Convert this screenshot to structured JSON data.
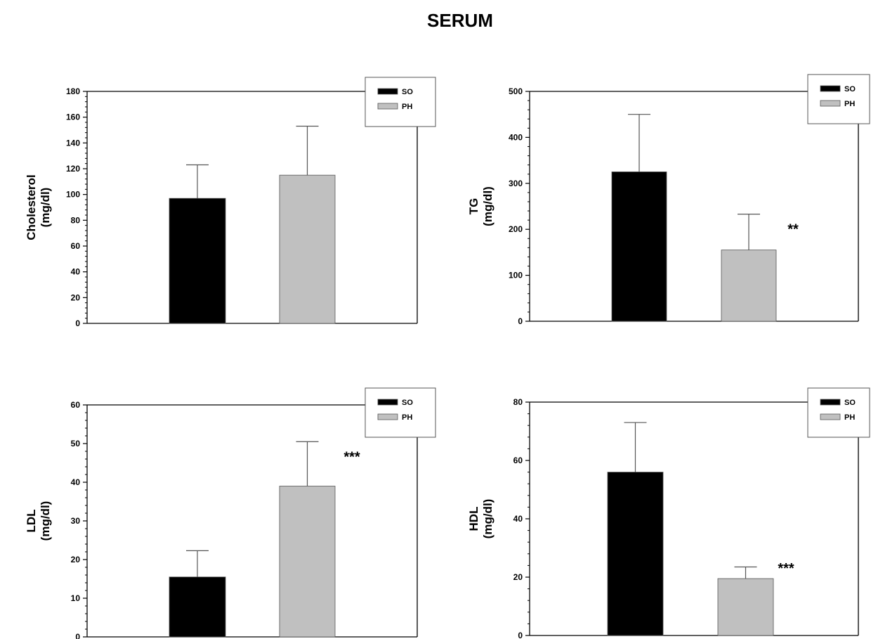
{
  "figure": {
    "title": "SERUM"
  },
  "chart_data": [
    {
      "type": "bar",
      "categories": [
        "SO",
        "PH"
      ],
      "series": [
        {
          "name": "SO",
          "color": "#000000"
        },
        {
          "name": "PH",
          "color": "#c0c0c0"
        }
      ],
      "values": [
        97,
        115
      ],
      "errors": [
        26,
        38
      ],
      "ylabel": [
        "Cholesterol",
        "(mg/dl)"
      ],
      "ylim": [
        0,
        180
      ],
      "yticks": [
        0,
        20,
        40,
        60,
        80,
        100,
        120,
        140,
        160,
        180
      ],
      "minor_ticks": true,
      "annotations": [
        "",
        ""
      ],
      "legend": {
        "position": "top-right",
        "entries": [
          "SO",
          "PH"
        ]
      },
      "grid": false
    },
    {
      "type": "bar",
      "categories": [
        "SO",
        "PH"
      ],
      "series": [
        {
          "name": "SO",
          "color": "#000000"
        },
        {
          "name": "PH",
          "color": "#c0c0c0"
        }
      ],
      "values": [
        325,
        155
      ],
      "errors": [
        125,
        78
      ],
      "ylabel": [
        "TG",
        "(mg/dl)"
      ],
      "ylim": [
        0,
        500
      ],
      "yticks": [
        0,
        100,
        200,
        300,
        400,
        500
      ],
      "minor_ticks": true,
      "annotations": [
        "",
        "**"
      ],
      "legend": {
        "position": "top-right",
        "entries": [
          "SO",
          "PH"
        ]
      },
      "grid": false
    },
    {
      "type": "bar",
      "categories": [
        "SO",
        "PH"
      ],
      "series": [
        {
          "name": "SO",
          "color": "#000000"
        },
        {
          "name": "PH",
          "color": "#c0c0c0"
        }
      ],
      "values": [
        15.5,
        39
      ],
      "errors": [
        6.8,
        11.5
      ],
      "ylabel": [
        "LDL",
        "(mg/dl)"
      ],
      "ylim": [
        0,
        60
      ],
      "yticks": [
        0,
        10,
        20,
        30,
        40,
        50,
        60
      ],
      "minor_ticks": true,
      "annotations": [
        "",
        "***"
      ],
      "legend": {
        "position": "top-right",
        "entries": [
          "SO",
          "PH"
        ]
      },
      "grid": false
    },
    {
      "type": "bar",
      "categories": [
        "SO",
        "PH"
      ],
      "series": [
        {
          "name": "SO",
          "color": "#000000"
        },
        {
          "name": "PH",
          "color": "#c0c0c0"
        }
      ],
      "values": [
        56,
        19.5
      ],
      "errors": [
        17,
        4
      ],
      "ylabel": [
        "HDL",
        "(mg/dl)"
      ],
      "ylim": [
        0,
        80
      ],
      "yticks": [
        0,
        20,
        40,
        60,
        80
      ],
      "minor_ticks": true,
      "annotations": [
        "",
        "***"
      ],
      "legend": {
        "position": "top-right",
        "entries": [
          "SO",
          "PH"
        ]
      },
      "grid": false
    }
  ]
}
